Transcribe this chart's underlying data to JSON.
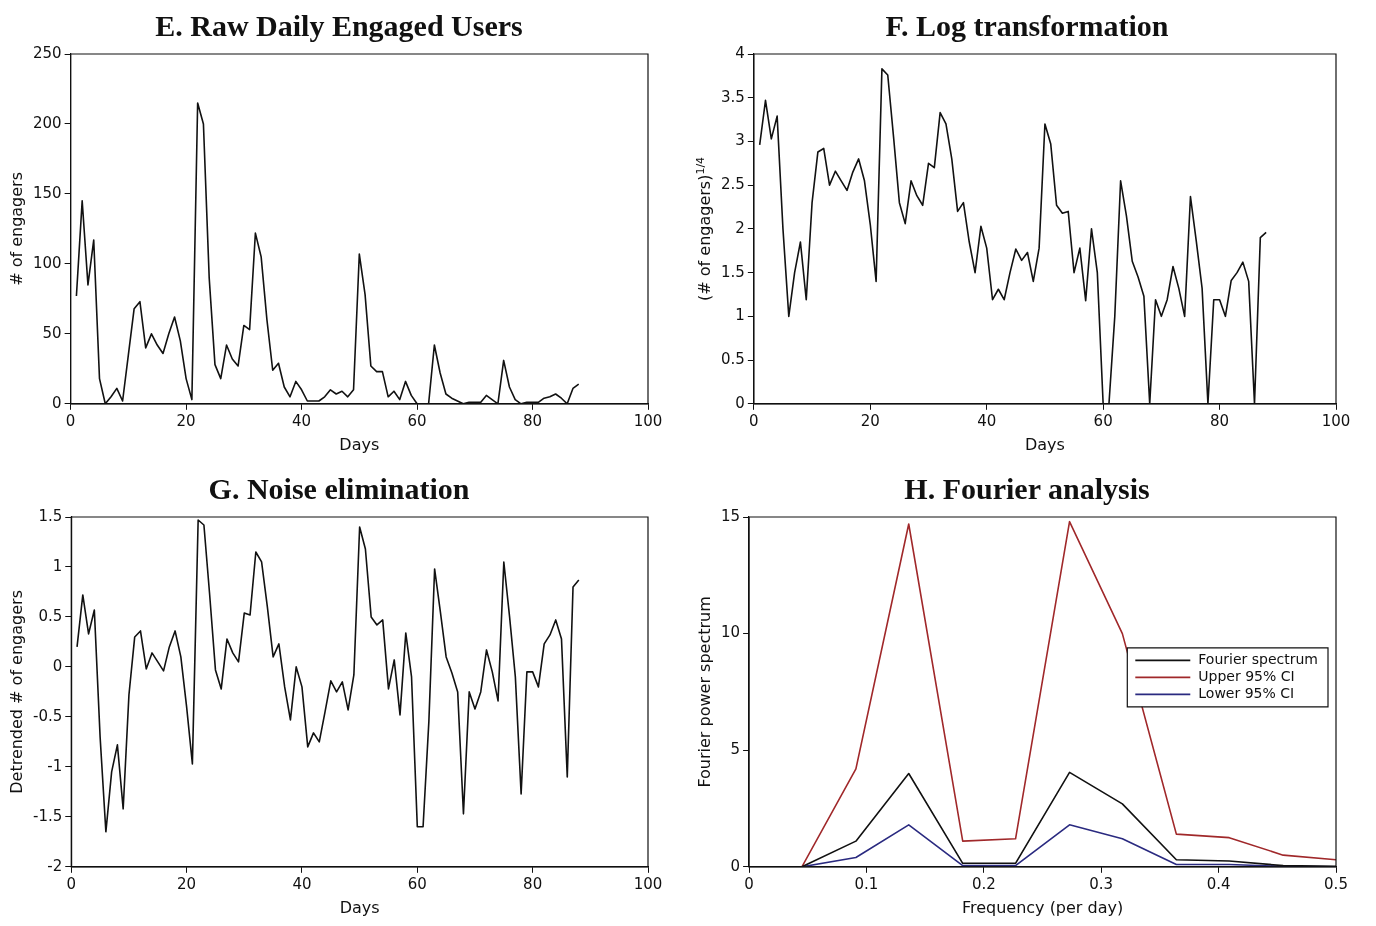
{
  "chart_data": [
    {
      "type": "line",
      "title": "E. Raw Daily Engaged Users",
      "xlabel": "Days",
      "ylabel": "# of engagers",
      "xlim": [
        0,
        100
      ],
      "ylim": [
        0,
        250
      ],
      "xticks": [
        0,
        20,
        40,
        60,
        80,
        100
      ],
      "yticks": [
        0,
        50,
        100,
        150,
        200,
        250
      ],
      "x": [
        1,
        2,
        3,
        4,
        5,
        6,
        7,
        8,
        9,
        10,
        11,
        12,
        13,
        14,
        15,
        16,
        17,
        18,
        19,
        20,
        21,
        22,
        23,
        24,
        25,
        26,
        27,
        28,
        29,
        30,
        31,
        32,
        33,
        34,
        35,
        36,
        37,
        38,
        39,
        40,
        41,
        42,
        43,
        44,
        45,
        46,
        47,
        48,
        49,
        50,
        51,
        52,
        53,
        54,
        55,
        56,
        57,
        58,
        59,
        60,
        61,
        62,
        63,
        64,
        65,
        66,
        67,
        68,
        69,
        70,
        71,
        72,
        73,
        74,
        75,
        76,
        77,
        78,
        79,
        80,
        81,
        82,
        83,
        84,
        85,
        86,
        87,
        88
      ],
      "series": [
        {
          "color": "#111111",
          "values": [
            77,
            145,
            85,
            117,
            18,
            0,
            5,
            11,
            2,
            35,
            68,
            73,
            40,
            50,
            42,
            36,
            50,
            62,
            45,
            18,
            3,
            215,
            200,
            90,
            28,
            18,
            42,
            32,
            27,
            56,
            53,
            122,
            105,
            60,
            24,
            29,
            12,
            5,
            16,
            10,
            2,
            2,
            2,
            5,
            10,
            7,
            9,
            5,
            10,
            107,
            78,
            27,
            23,
            23,
            5,
            9,
            3,
            16,
            6,
            0,
            0,
            0,
            42,
            22,
            7,
            4,
            2,
            0,
            1,
            1,
            1,
            6,
            3,
            0,
            31,
            12,
            3,
            0,
            1,
            1,
            1,
            4,
            5,
            7,
            4,
            0,
            11,
            14
          ]
        }
      ]
    },
    {
      "type": "line",
      "title": "F. Log transformation",
      "xlabel": "Days",
      "ylabel": "(# of engagers)$^{1/4}$",
      "xlim": [
        0,
        100
      ],
      "ylim": [
        0,
        4
      ],
      "xticks": [
        0,
        20,
        40,
        60,
        80,
        100
      ],
      "yticks": [
        0,
        0.5,
        1,
        1.5,
        2,
        2.5,
        3,
        3.5,
        4
      ],
      "x": [
        1,
        2,
        3,
        4,
        5,
        6,
        7,
        8,
        9,
        10,
        11,
        12,
        13,
        14,
        15,
        16,
        17,
        18,
        19,
        20,
        21,
        22,
        23,
        24,
        25,
        26,
        27,
        28,
        29,
        30,
        31,
        32,
        33,
        34,
        35,
        36,
        37,
        38,
        39,
        40,
        41,
        42,
        43,
        44,
        45,
        46,
        47,
        48,
        49,
        50,
        51,
        52,
        53,
        54,
        55,
        56,
        57,
        58,
        59,
        60,
        61,
        62,
        63,
        64,
        65,
        66,
        67,
        68,
        69,
        70,
        71,
        72,
        73,
        74,
        75,
        76,
        77,
        78,
        79,
        80,
        81,
        82,
        83,
        84,
        85,
        86,
        87,
        88
      ],
      "series": [
        {
          "color": "#111111",
          "values": [
            2.96,
            3.47,
            3.03,
            3.29,
            2.0,
            1.0,
            1.5,
            1.85,
            1.19,
            2.3,
            2.88,
            2.92,
            2.5,
            2.66,
            2.55,
            2.44,
            2.65,
            2.8,
            2.55,
            2.05,
            1.4,
            3.83,
            3.76,
            3.05,
            2.3,
            2.06,
            2.55,
            2.38,
            2.27,
            2.75,
            2.7,
            3.33,
            3.2,
            2.8,
            2.2,
            2.3,
            1.85,
            1.5,
            2.03,
            1.78,
            1.19,
            1.31,
            1.19,
            1.5,
            1.77,
            1.64,
            1.73,
            1.4,
            1.78,
            3.2,
            2.97,
            2.27,
            2.18,
            2.2,
            1.5,
            1.78,
            1.18,
            2.0,
            1.5,
            0,
            0,
            1.0,
            2.55,
            2.15,
            1.63,
            1.45,
            1.23,
            0,
            1.19,
            1.0,
            1.19,
            1.57,
            1.32,
            1.0,
            2.37,
            1.86,
            1.32,
            0,
            1.19,
            1.19,
            1.0,
            1.41,
            1.5,
            1.62,
            1.4,
            0,
            1.9,
            1.96
          ]
        }
      ]
    },
    {
      "type": "line",
      "title": "G. Noise elimination",
      "xlabel": "Days",
      "ylabel": "Detrended # of engagers",
      "xlim": [
        0,
        100
      ],
      "ylim": [
        -2,
        1.5
      ],
      "xticks": [
        0,
        20,
        40,
        60,
        80,
        100
      ],
      "yticks": [
        -2,
        -1.5,
        -1,
        -0.5,
        0,
        0.5,
        1,
        1.5
      ],
      "x": [
        1,
        2,
        3,
        4,
        5,
        6,
        7,
        8,
        9,
        10,
        11,
        12,
        13,
        14,
        15,
        16,
        17,
        18,
        19,
        20,
        21,
        22,
        23,
        24,
        25,
        26,
        27,
        28,
        29,
        30,
        31,
        32,
        33,
        34,
        35,
        36,
        37,
        38,
        39,
        40,
        41,
        42,
        43,
        44,
        45,
        46,
        47,
        48,
        49,
        50,
        51,
        52,
        53,
        54,
        55,
        56,
        57,
        58,
        59,
        60,
        61,
        62,
        63,
        64,
        65,
        66,
        67,
        68,
        69,
        70,
        71,
        72,
        73,
        74,
        75,
        76,
        77,
        78,
        79,
        80,
        81,
        82,
        83,
        84,
        85,
        86,
        87,
        88
      ],
      "series": [
        {
          "color": "#111111",
          "values": [
            0.2,
            0.72,
            0.33,
            0.57,
            -0.7,
            -1.65,
            -1.05,
            -0.78,
            -1.42,
            -0.28,
            0.3,
            0.36,
            -0.02,
            0.14,
            0.05,
            -0.04,
            0.2,
            0.36,
            0.1,
            -0.4,
            -0.97,
            1.47,
            1.42,
            0.72,
            -0.03,
            -0.22,
            0.28,
            0.14,
            0.05,
            0.54,
            0.52,
            1.15,
            1.05,
            0.6,
            0.1,
            0.23,
            -0.2,
            -0.53,
            0.0,
            -0.2,
            -0.8,
            -0.66,
            -0.75,
            -0.45,
            -0.14,
            -0.25,
            -0.15,
            -0.43,
            -0.08,
            1.4,
            1.18,
            0.5,
            0.42,
            0.47,
            -0.22,
            0.07,
            -0.48,
            0.34,
            -0.1,
            -1.6,
            -1.6,
            -0.55,
            0.98,
            0.55,
            0.1,
            -0.06,
            -0.25,
            -1.47,
            -0.25,
            -0.42,
            -0.25,
            0.17,
            -0.05,
            -0.34,
            1.05,
            0.5,
            -0.1,
            -1.27,
            -0.05,
            -0.05,
            -0.2,
            0.23,
            0.32,
            0.47,
            0.28,
            -1.1,
            0.8,
            0.87
          ]
        }
      ]
    },
    {
      "type": "line",
      "title": "H. Fourier analysis",
      "xlabel": "Frequency (per day)",
      "ylabel": "Fourier power spectrum",
      "xlim": [
        0,
        0.5
      ],
      "ylim": [
        0,
        15
      ],
      "xticks": [
        0,
        0.1,
        0.2,
        0.3,
        0.4,
        0.5
      ],
      "yticks": [
        0,
        5,
        10,
        15
      ],
      "legend": "right",
      "x": [
        0.045,
        0.091,
        0.136,
        0.182,
        0.227,
        0.273,
        0.318,
        0.364,
        0.409,
        0.455,
        0.5
      ],
      "series": [
        {
          "name": "Fourier spectrum",
          "color": "#111111",
          "values": [
            0,
            1.1,
            4.0,
            0.15,
            0.15,
            4.05,
            2.7,
            0.3,
            0.25,
            0.05,
            0.02
          ]
        },
        {
          "name": "Upper 95% CI",
          "color": "#a0282a",
          "values": [
            0,
            4.2,
            14.7,
            1.1,
            1.2,
            14.8,
            10,
            1.4,
            1.25,
            0.5,
            0.3
          ]
        },
        {
          "name": "Lower 95% CI",
          "color": "#2a2a80",
          "values": [
            0,
            0.4,
            1.8,
            0.05,
            0.05,
            1.8,
            1.2,
            0.1,
            0.1,
            0.02,
            0
          ]
        }
      ]
    }
  ]
}
